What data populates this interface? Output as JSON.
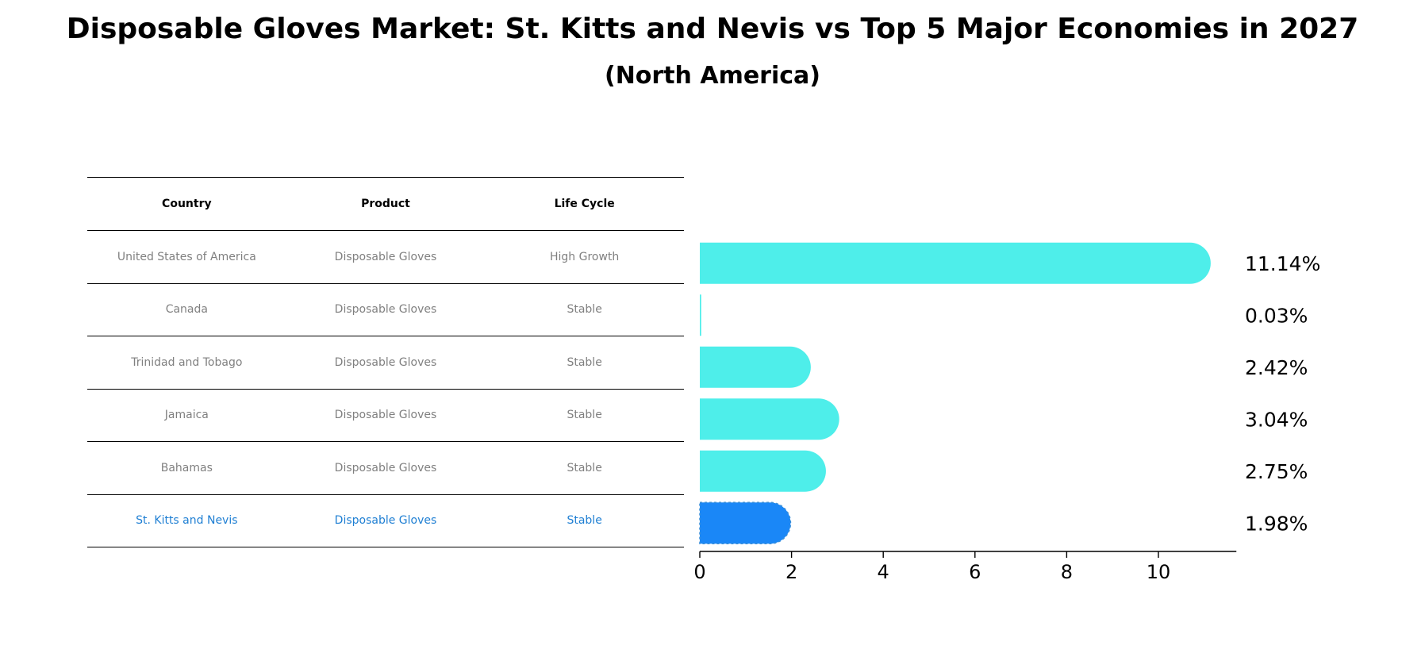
{
  "header": {
    "title": "Disposable Gloves Market: St. Kitts and Nevis vs Top 5 Major Economies in 2027",
    "subtitle": "(North America)"
  },
  "table": {
    "columns": [
      "Country",
      "Product",
      "Life Cycle"
    ],
    "rows": [
      {
        "country": "United States of America",
        "product": "Disposable Gloves",
        "life_cycle": "High Growth"
      },
      {
        "country": "Canada",
        "product": "Disposable Gloves",
        "life_cycle": "Stable"
      },
      {
        "country": "Trinidad and Tobago",
        "product": "Disposable Gloves",
        "life_cycle": "Stable"
      },
      {
        "country": "Jamaica",
        "product": "Disposable Gloves",
        "life_cycle": "Stable"
      },
      {
        "country": "Bahamas",
        "product": "Disposable Gloves",
        "life_cycle": "Stable"
      },
      {
        "country": "St. Kitts and Nevis",
        "product": "Disposable Gloves",
        "life_cycle": "Stable"
      }
    ]
  },
  "chart_data": {
    "type": "bar",
    "orientation": "horizontal",
    "title": "Disposable Gloves Market: St. Kitts and Nevis vs Top 5 Major Economies in 2027",
    "subtitle": "(North America)",
    "categories": [
      "United States of America",
      "Canada",
      "Trinidad and Tobago",
      "Jamaica",
      "Bahamas",
      "St. Kitts and Nevis"
    ],
    "values": [
      11.14,
      0.03,
      2.42,
      3.04,
      2.75,
      1.98
    ],
    "value_labels": [
      "11.14%",
      "0.03%",
      "2.42%",
      "3.04%",
      "2.75%",
      "1.98%"
    ],
    "highlight": "St. Kitts and Nevis",
    "xlim": [
      0,
      11.7
    ],
    "xticks": [
      0,
      2,
      4,
      6,
      8,
      10
    ],
    "xlabel": "",
    "ylabel": "",
    "grid": false,
    "colors": {
      "default": "#4eeeea",
      "highlight": "#1a87f7"
    }
  }
}
